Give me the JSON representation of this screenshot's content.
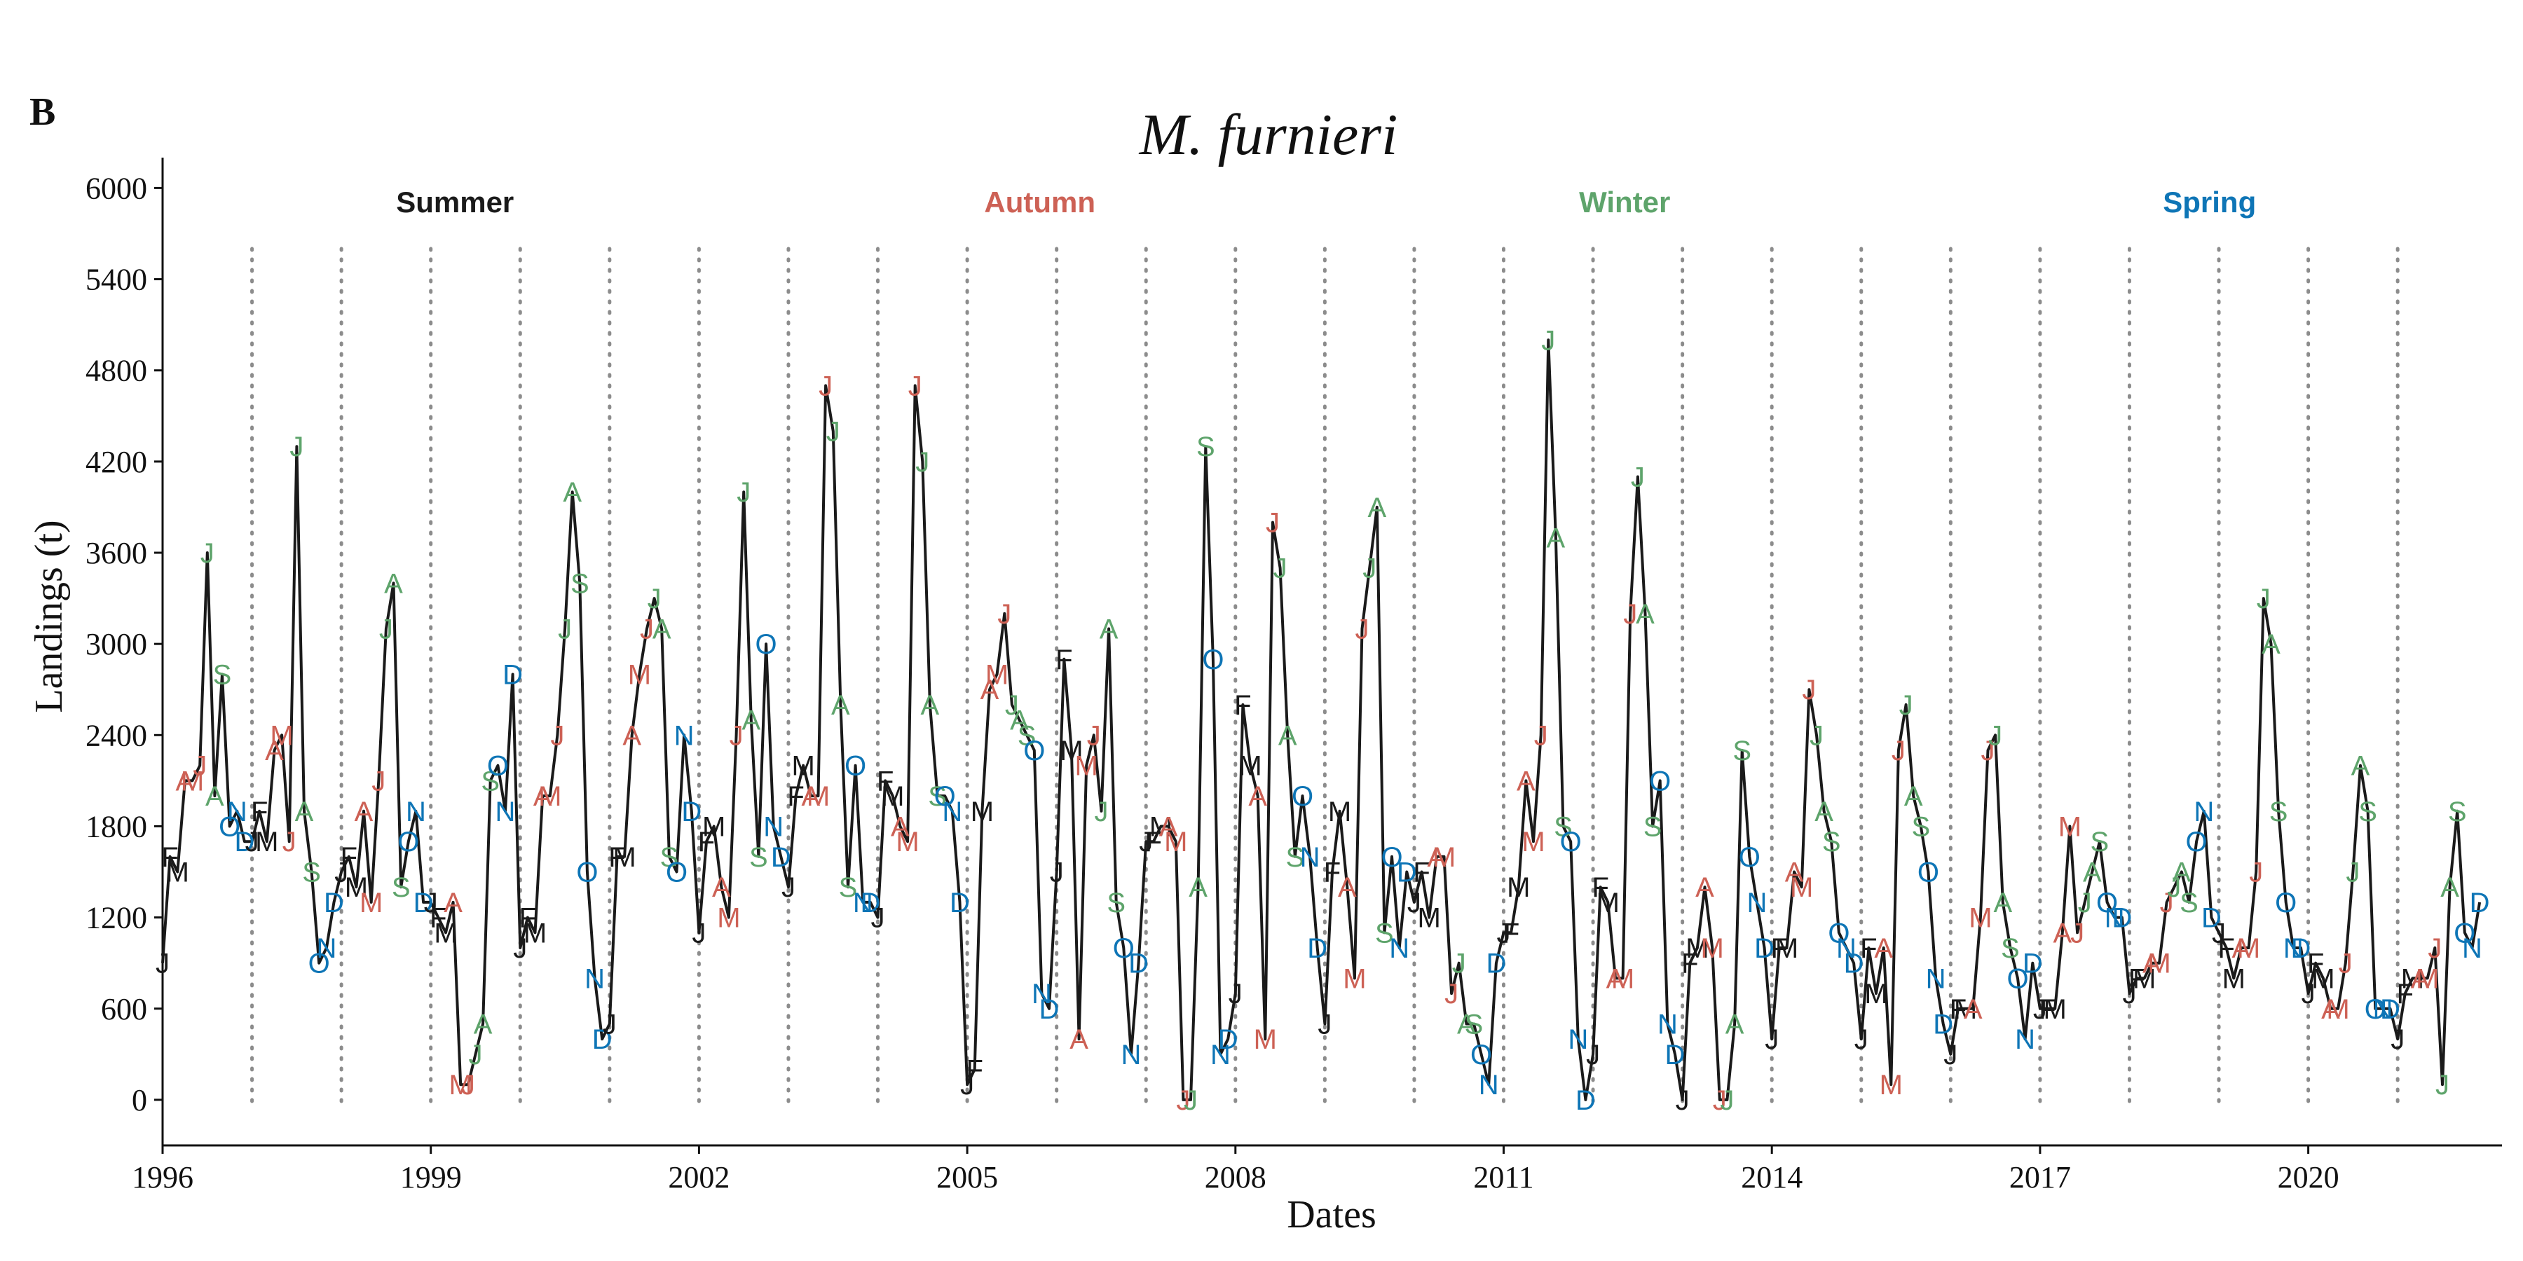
{
  "panel_letter": "B",
  "chart_data": {
    "type": "line",
    "title": "M. furnieri",
    "xlabel": "Dates",
    "ylabel": "Landings (t)",
    "xlim": [
      "1996-01",
      "2022-03"
    ],
    "ylim": [
      -300,
      6200
    ],
    "x_ticks": [
      "1996",
      "1999",
      "2002",
      "2005",
      "2008",
      "2011",
      "2014",
      "2017",
      "2020"
    ],
    "y_ticks": [
      "0",
      "600",
      "1200",
      "1800",
      "2400",
      "3000",
      "3600",
      "4200",
      "4800",
      "5400",
      "6000"
    ],
    "year_separators": "dotted vertical lines at each January from 1997 to 2021",
    "point_labels": "month initials (J F M A M J J A S O N D) colored by season",
    "seasons": [
      {
        "name": "Summer",
        "color": "#1a1a1a",
        "months": [
          "J",
          "F",
          "M"
        ]
      },
      {
        "name": "Autumn",
        "color": "#cd6155",
        "months": [
          "A",
          "M",
          "J"
        ]
      },
      {
        "name": "Winter",
        "color": "#5ea46b",
        "months": [
          "J",
          "A",
          "S"
        ]
      },
      {
        "name": "Spring",
        "color": "#0e75b6",
        "months": [
          "O",
          "N",
          "D"
        ]
      }
    ],
    "series": [
      {
        "start": "1996-01",
        "values": [
          900,
          1600,
          1500,
          2100,
          2100,
          2200,
          3600,
          2000,
          2800,
          1800,
          1900,
          1700,
          1700,
          1900,
          1700,
          2300,
          2400,
          1700,
          4300,
          1900,
          1500,
          900,
          1000,
          1300,
          1500,
          1600,
          1400,
          1900,
          1300,
          2100,
          3100,
          3400,
          1400,
          1700,
          1900,
          1300,
          1300,
          1200,
          1100,
          1300,
          100,
          100,
          300,
          500,
          2100,
          2200,
          1900,
          2800,
          1000,
          1200,
          1100,
          2000,
          2000,
          2400,
          3100,
          4000,
          3400,
          1500,
          800,
          400,
          500,
          1600,
          1600,
          2400,
          2800,
          3100,
          3300,
          3100,
          1600,
          1500,
          2400,
          1900,
          1100,
          1700,
          1800,
          1400,
          1200,
          2400,
          4000,
          2500,
          1600,
          3000,
          1800,
          1600,
          1400,
          2000,
          2200,
          2000,
          2000,
          4700,
          4400,
          2600,
          1400,
          2200,
          1300,
          1300,
          1200,
          2100,
          2000,
          1800,
          1700,
          4700,
          4200,
          2600,
          2000,
          2000,
          1900,
          1300,
          100,
          200,
          1900,
          2700,
          2800,
          3200,
          2600,
          2500,
          2400,
          2300,
          700,
          600,
          1500,
          2900,
          2300,
          400,
          2200,
          2400,
          1900,
          3100,
          1300,
          1000,
          300,
          900,
          1700,
          1700,
          1800,
          1800,
          1700,
          0,
          0,
          1400,
          4300,
          2900,
          300,
          400,
          700,
          2600,
          2200,
          2000,
          400,
          3800,
          3500,
          2400,
          1600,
          2000,
          1600,
          1000,
          500,
          1500,
          1900,
          1400,
          800,
          3100,
          3500,
          3900,
          1100,
          1600,
          1000,
          1500,
          1300,
          1500,
          1200,
          1600,
          1600,
          700,
          900,
          500,
          500,
          300,
          100,
          900,
          1100,
          1100,
          1400,
          2100,
          1700,
          2400,
          5000,
          3700,
          1800,
          1700,
          400,
          0,
          300,
          1400,
          1300,
          800,
          800,
          3200,
          4100,
          3200,
          1800,
          2100,
          500,
          300,
          0,
          900,
          1000,
          1400,
          1000,
          0,
          0,
          500,
          2300,
          1600,
          1300,
          1000,
          400,
          1000,
          1000,
          1500,
          1400,
          2700,
          2400,
          1900,
          1700,
          1100,
          1000,
          900,
          400,
          1000,
          700,
          1000,
          100,
          2300,
          2600,
          2000,
          1800,
          1500,
          800,
          500,
          300,
          600,
          600,
          600,
          1200,
          2300,
          2400,
          1300,
          1000,
          800,
          400,
          900,
          600,
          600,
          600,
          1100,
          1800,
          1100,
          1300,
          1500,
          1700,
          1300,
          1200,
          1200,
          700,
          800,
          800,
          900,
          900,
          1300,
          1400,
          1500,
          1300,
          1700,
          1900,
          1200,
          1100,
          1000,
          800,
          1000,
          1000,
          1500,
          3300,
          3000,
          1900,
          1300,
          1000,
          1000,
          700,
          900,
          800,
          600,
          600,
          900,
          1500,
          2200,
          1900,
          600,
          600,
          600,
          400,
          700,
          800,
          800,
          800,
          1000,
          100,
          1400,
          1900,
          1100,
          1000,
          1300
        ]
      }
    ]
  }
}
